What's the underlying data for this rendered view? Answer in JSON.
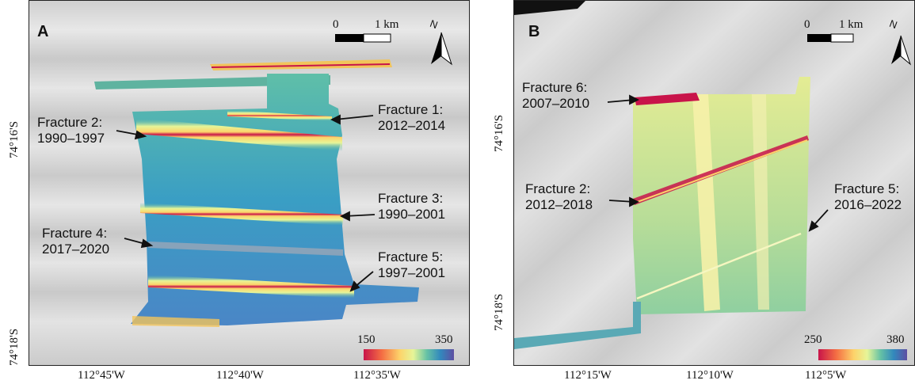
{
  "panels": {
    "A": {
      "label": "A",
      "scale": {
        "zero": "0",
        "dist": "1 km"
      },
      "north": "N",
      "colorbar": {
        "min": "150",
        "max": "350"
      },
      "x_ticks": [
        "112°45'W",
        "112°40'W",
        "112°35'W"
      ],
      "y_ticks": [
        "74°16'S",
        "74°18'S"
      ],
      "fractures": [
        {
          "name": "Fracture 1:",
          "years": "2012–2014"
        },
        {
          "name": "Fracture 2:",
          "years": "1990–1997"
        },
        {
          "name": "Fracture 3:",
          "years": "1990–2001"
        },
        {
          "name": "Fracture 4:",
          "years": "2017–2020"
        },
        {
          "name": "Fracture 5:",
          "years": "1997–2001"
        }
      ]
    },
    "B": {
      "label": "B",
      "scale": {
        "zero": "0",
        "dist": "1 km"
      },
      "north": "N",
      "colorbar": {
        "min": "250",
        "max": "380"
      },
      "x_ticks": [
        "112°15'W",
        "112°10'W",
        "112°5'W"
      ],
      "y_ticks": [
        "74°16'S",
        "74°18'S"
      ],
      "fractures": [
        {
          "name": "Fracture 6:",
          "years": "2007–2010"
        },
        {
          "name": "Fracture 2:",
          "years": "2012–2018"
        },
        {
          "name": "Fracture 5:",
          "years": "2016–2022"
        }
      ]
    }
  },
  "colors": {
    "ramp": [
      "#c8144a",
      "#f46d43",
      "#fdd36a",
      "#e6f598",
      "#66c2a5",
      "#3288bd",
      "#5e4fa2"
    ]
  }
}
